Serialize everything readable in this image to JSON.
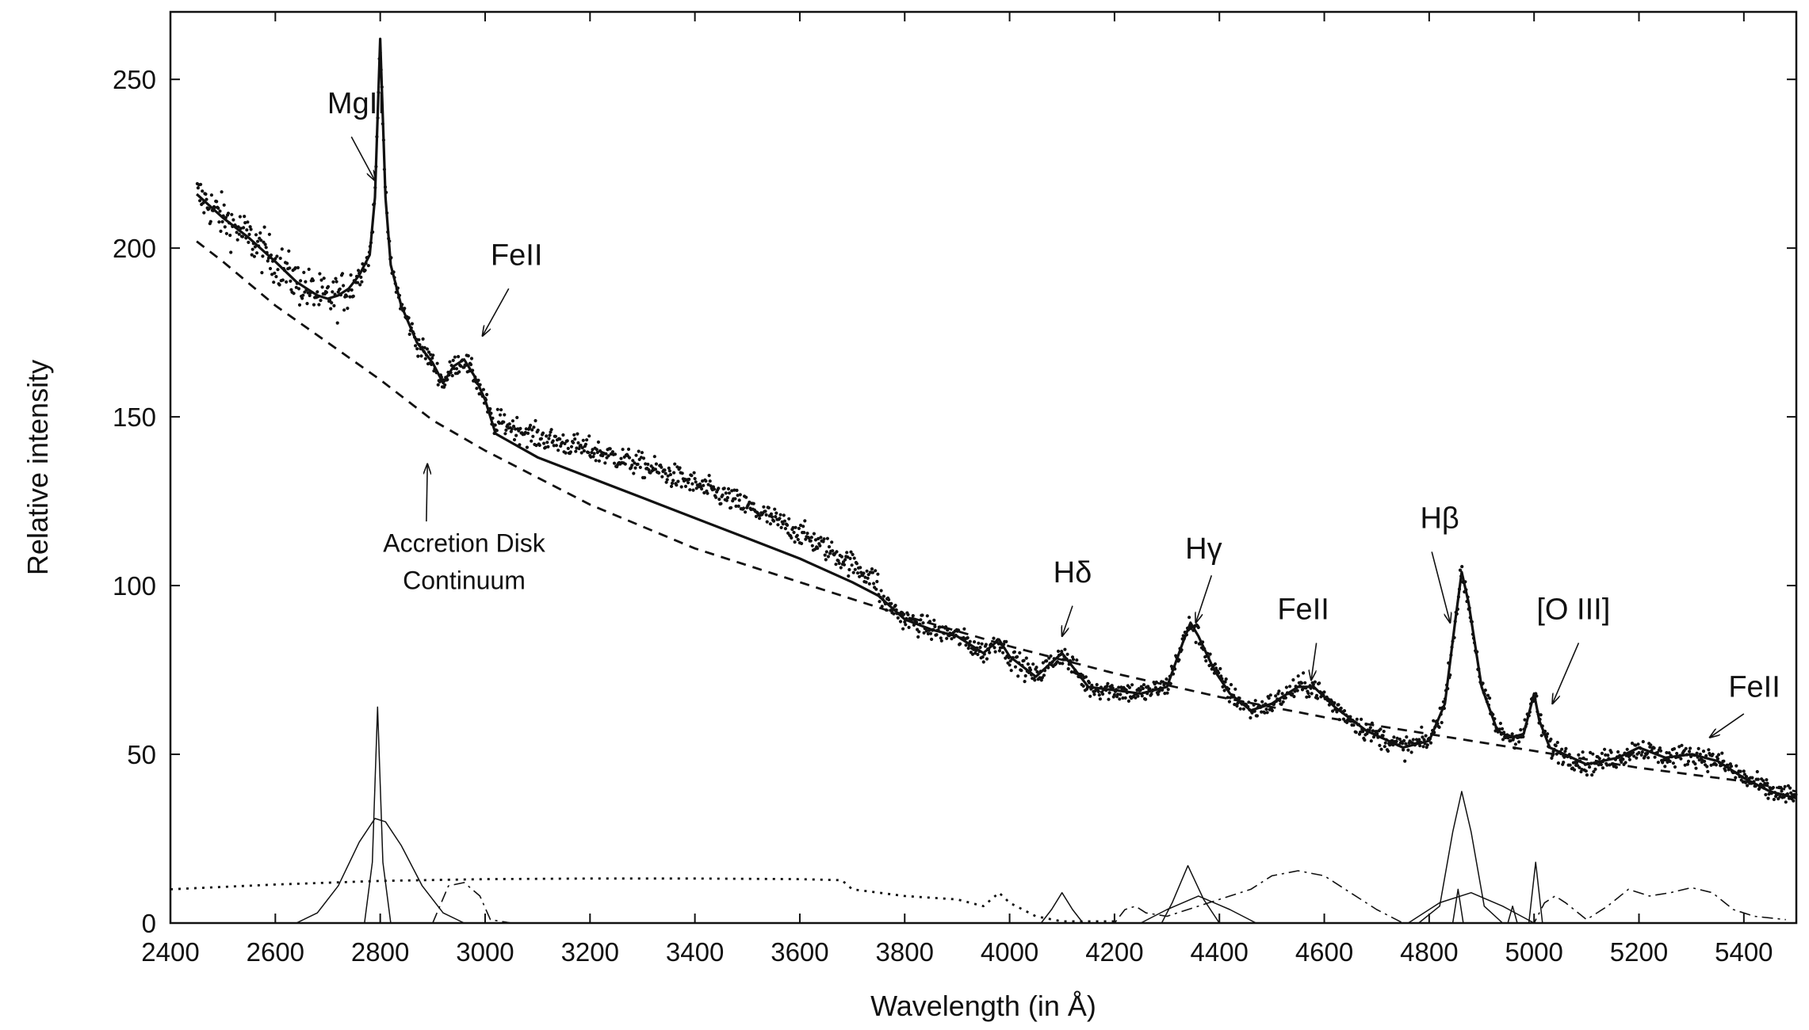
{
  "chart_data": {
    "type": "line",
    "title": "",
    "xlabel": "Wavelength (in Å)",
    "ylabel": "Relative intensity",
    "xlim": [
      2400,
      5500
    ],
    "ylim": [
      0,
      270
    ],
    "x_ticks": [
      2400,
      2600,
      2800,
      3000,
      3200,
      3400,
      3600,
      3800,
      4000,
      4200,
      4400,
      4600,
      4800,
      5000,
      5200,
      5400
    ],
    "y_ticks": [
      0,
      50,
      100,
      150,
      200,
      250
    ],
    "grid": false,
    "series": [
      {
        "style": "solid",
        "points": [
          [
            2450,
            216
          ],
          [
            2500,
            209
          ],
          [
            2550,
            203
          ],
          [
            2600,
            196
          ],
          [
            2640,
            190
          ],
          [
            2680,
            186
          ],
          [
            2700,
            185
          ],
          [
            2720,
            186
          ],
          [
            2740,
            188
          ],
          [
            2760,
            192
          ],
          [
            2780,
            198
          ],
          [
            2790,
            215
          ],
          [
            2800,
            262
          ],
          [
            2810,
            215
          ],
          [
            2820,
            195
          ],
          [
            2840,
            183
          ],
          [
            2870,
            172
          ],
          [
            2900,
            166
          ],
          [
            2920,
            160
          ],
          [
            2940,
            165
          ],
          [
            2960,
            167
          ],
          [
            2980,
            162
          ],
          [
            3000,
            155
          ],
          [
            3020,
            145
          ],
          [
            3100,
            138
          ],
          [
            3200,
            132
          ],
          [
            3300,
            126
          ],
          [
            3400,
            120
          ],
          [
            3500,
            114
          ],
          [
            3600,
            108
          ],
          [
            3700,
            101
          ],
          [
            3750,
            97
          ],
          [
            3800,
            90
          ],
          [
            3850,
            87
          ],
          [
            3900,
            85
          ],
          [
            3950,
            80
          ],
          [
            3980,
            84
          ],
          [
            4000,
            79
          ],
          [
            4050,
            73
          ],
          [
            4100,
            80
          ],
          [
            4130,
            74
          ],
          [
            4150,
            70
          ],
          [
            4200,
            69
          ],
          [
            4250,
            68
          ],
          [
            4300,
            70
          ],
          [
            4330,
            83
          ],
          [
            4345,
            89
          ],
          [
            4360,
            85
          ],
          [
            4390,
            75
          ],
          [
            4420,
            68
          ],
          [
            4460,
            63
          ],
          [
            4500,
            65
          ],
          [
            4550,
            70
          ],
          [
            4580,
            70
          ],
          [
            4620,
            64
          ],
          [
            4680,
            57
          ],
          [
            4750,
            52
          ],
          [
            4800,
            54
          ],
          [
            4830,
            65
          ],
          [
            4850,
            90
          ],
          [
            4862,
            104
          ],
          [
            4875,
            95
          ],
          [
            4900,
            70
          ],
          [
            4930,
            57
          ],
          [
            4955,
            55
          ],
          [
            4980,
            56
          ],
          [
            5000,
            68
          ],
          [
            5010,
            60
          ],
          [
            5030,
            52
          ],
          [
            5100,
            47
          ],
          [
            5160,
            49
          ],
          [
            5200,
            52
          ],
          [
            5250,
            49
          ],
          [
            5300,
            50
          ],
          [
            5350,
            48
          ],
          [
            5400,
            43
          ],
          [
            5450,
            39
          ],
          [
            5500,
            37
          ]
        ]
      },
      {
        "style": "dashed",
        "points": [
          [
            2450,
            202
          ],
          [
            2500,
            196
          ],
          [
            2600,
            183
          ],
          [
            2700,
            172
          ],
          [
            2800,
            161
          ],
          [
            2900,
            149
          ],
          [
            3000,
            140
          ],
          [
            3200,
            124
          ],
          [
            3400,
            111
          ],
          [
            3600,
            101
          ],
          [
            3800,
            91
          ],
          [
            4000,
            82
          ],
          [
            4200,
            74
          ],
          [
            4400,
            67
          ],
          [
            4600,
            61
          ],
          [
            4800,
            56
          ],
          [
            5000,
            51
          ],
          [
            5200,
            46
          ],
          [
            5400,
            42
          ],
          [
            5500,
            39
          ]
        ]
      },
      {
        "style": "dotted",
        "points": [
          [
            2400,
            10
          ],
          [
            2600,
            11.4
          ],
          [
            2800,
            12.5
          ],
          [
            3000,
            13
          ],
          [
            3200,
            13.2
          ],
          [
            3400,
            13.2
          ],
          [
            3600,
            13
          ],
          [
            3680,
            12.7
          ],
          [
            3700,
            10
          ],
          [
            3800,
            8
          ],
          [
            3900,
            7
          ],
          [
            3950,
            5
          ],
          [
            3980,
            9
          ],
          [
            4000,
            6
          ],
          [
            4050,
            2
          ],
          [
            4100,
            0.5
          ],
          [
            4200,
            0.5
          ]
        ]
      },
      {
        "style": "dashdot",
        "points": [
          [
            2900,
            0
          ],
          [
            2930,
            11
          ],
          [
            2960,
            12
          ],
          [
            2990,
            8
          ],
          [
            3010,
            1
          ],
          [
            3050,
            0
          ],
          [
            4200,
            0
          ],
          [
            4220,
            4
          ],
          [
            4240,
            5
          ],
          [
            4260,
            3
          ],
          [
            4300,
            2
          ],
          [
            4380,
            6
          ],
          [
            4420,
            8
          ],
          [
            4460,
            10
          ],
          [
            4500,
            14
          ],
          [
            4550,
            15.5
          ],
          [
            4600,
            14
          ],
          [
            4650,
            9
          ],
          [
            4700,
            4
          ],
          [
            4750,
            0
          ],
          [
            5000,
            0
          ],
          [
            5020,
            6
          ],
          [
            5040,
            8
          ],
          [
            5060,
            6
          ],
          [
            5100,
            1
          ],
          [
            5140,
            5
          ],
          [
            5180,
            10
          ],
          [
            5220,
            8
          ],
          [
            5260,
            9
          ],
          [
            5300,
            10.5
          ],
          [
            5340,
            9
          ],
          [
            5380,
            4
          ],
          [
            5420,
            2
          ],
          [
            5480,
            1
          ]
        ]
      },
      {
        "style": "thin",
        "name_hidden": "MgII broad",
        "points": [
          [
            2640,
            0
          ],
          [
            2680,
            3
          ],
          [
            2720,
            11
          ],
          [
            2760,
            24
          ],
          [
            2790,
            31
          ],
          [
            2810,
            30
          ],
          [
            2840,
            23
          ],
          [
            2880,
            11
          ],
          [
            2920,
            3
          ],
          [
            2960,
            0
          ]
        ]
      },
      {
        "style": "thin",
        "points": [
          [
            2770,
            0
          ],
          [
            2785,
            18
          ],
          [
            2795,
            64
          ],
          [
            2805,
            18
          ],
          [
            2820,
            0
          ]
        ]
      },
      {
        "style": "thin",
        "points": [
          [
            4060,
            0
          ],
          [
            4080,
            4
          ],
          [
            4100,
            9
          ],
          [
            4120,
            4
          ],
          [
            4140,
            0
          ]
        ]
      },
      {
        "style": "thin",
        "points": [
          [
            4290,
            0
          ],
          [
            4310,
            6
          ],
          [
            4340,
            17
          ],
          [
            4370,
            7
          ],
          [
            4400,
            0
          ]
        ]
      },
      {
        "style": "thin",
        "points": [
          [
            4250,
            0
          ],
          [
            4300,
            4
          ],
          [
            4360,
            8
          ],
          [
            4420,
            4
          ],
          [
            4470,
            0
          ]
        ]
      },
      {
        "style": "thin",
        "points": [
          [
            4780,
            0
          ],
          [
            4820,
            5
          ],
          [
            4845,
            27
          ],
          [
            4862,
            39
          ],
          [
            4880,
            27
          ],
          [
            4905,
            5
          ],
          [
            4940,
            0
          ]
        ]
      },
      {
        "style": "thin",
        "points": [
          [
            4760,
            0
          ],
          [
            4820,
            6
          ],
          [
            4880,
            9
          ],
          [
            4940,
            5
          ],
          [
            5000,
            0
          ]
        ]
      },
      {
        "style": "thin",
        "points": [
          [
            4845,
            0
          ],
          [
            4855,
            10
          ],
          [
            4865,
            0
          ]
        ]
      },
      {
        "style": "thin",
        "points": [
          [
            4950,
            0
          ],
          [
            4959,
            5
          ],
          [
            4968,
            0
          ]
        ]
      },
      {
        "style": "thin",
        "points": [
          [
            4990,
            0
          ],
          [
            5003,
            18
          ],
          [
            5016,
            0
          ]
        ]
      }
    ],
    "annotations": [
      {
        "text": "MgII",
        "label_x": 2755,
        "label_y": 240,
        "arrow_from": [
          2745,
          233
        ],
        "arrow_to": [
          2790,
          220
        ]
      },
      {
        "text": "FeII",
        "label_x": 3060,
        "label_y": 195,
        "arrow_from": [
          3045,
          188
        ],
        "arrow_to": [
          2995,
          174
        ]
      },
      {
        "text": "Accretion Disk",
        "label_x": 2960,
        "label_y": 110,
        "arrow_from": [
          2888,
          119
        ],
        "arrow_to": [
          2890,
          136
        ]
      },
      {
        "text": "Continuum",
        "label_x": 2960,
        "label_y": 99
      },
      {
        "text": "Hδ",
        "label_x": 4120,
        "label_y": 101,
        "arrow_from": [
          4120,
          94
        ],
        "arrow_to": [
          4100,
          85
        ]
      },
      {
        "text": "Hγ",
        "label_x": 4370,
        "label_y": 108,
        "arrow_from": [
          4385,
          103
        ],
        "arrow_to": [
          4355,
          89
        ]
      },
      {
        "text": "FeII",
        "label_x": 4560,
        "label_y": 90,
        "arrow_from": [
          4585,
          83
        ],
        "arrow_to": [
          4575,
          72
        ]
      },
      {
        "text": "Hβ",
        "label_x": 4820,
        "label_y": 117,
        "arrow_from": [
          4805,
          110
        ],
        "arrow_to": [
          4840,
          89
        ]
      },
      {
        "text": "[O III]",
        "label_x": 5075,
        "label_y": 90,
        "arrow_from": [
          5085,
          83
        ],
        "arrow_to": [
          5035,
          65
        ]
      },
      {
        "text": "FeII",
        "label_x": 5420,
        "label_y": 67,
        "arrow_from": [
          5400,
          62
        ],
        "arrow_to": [
          5335,
          55
        ]
      }
    ]
  }
}
